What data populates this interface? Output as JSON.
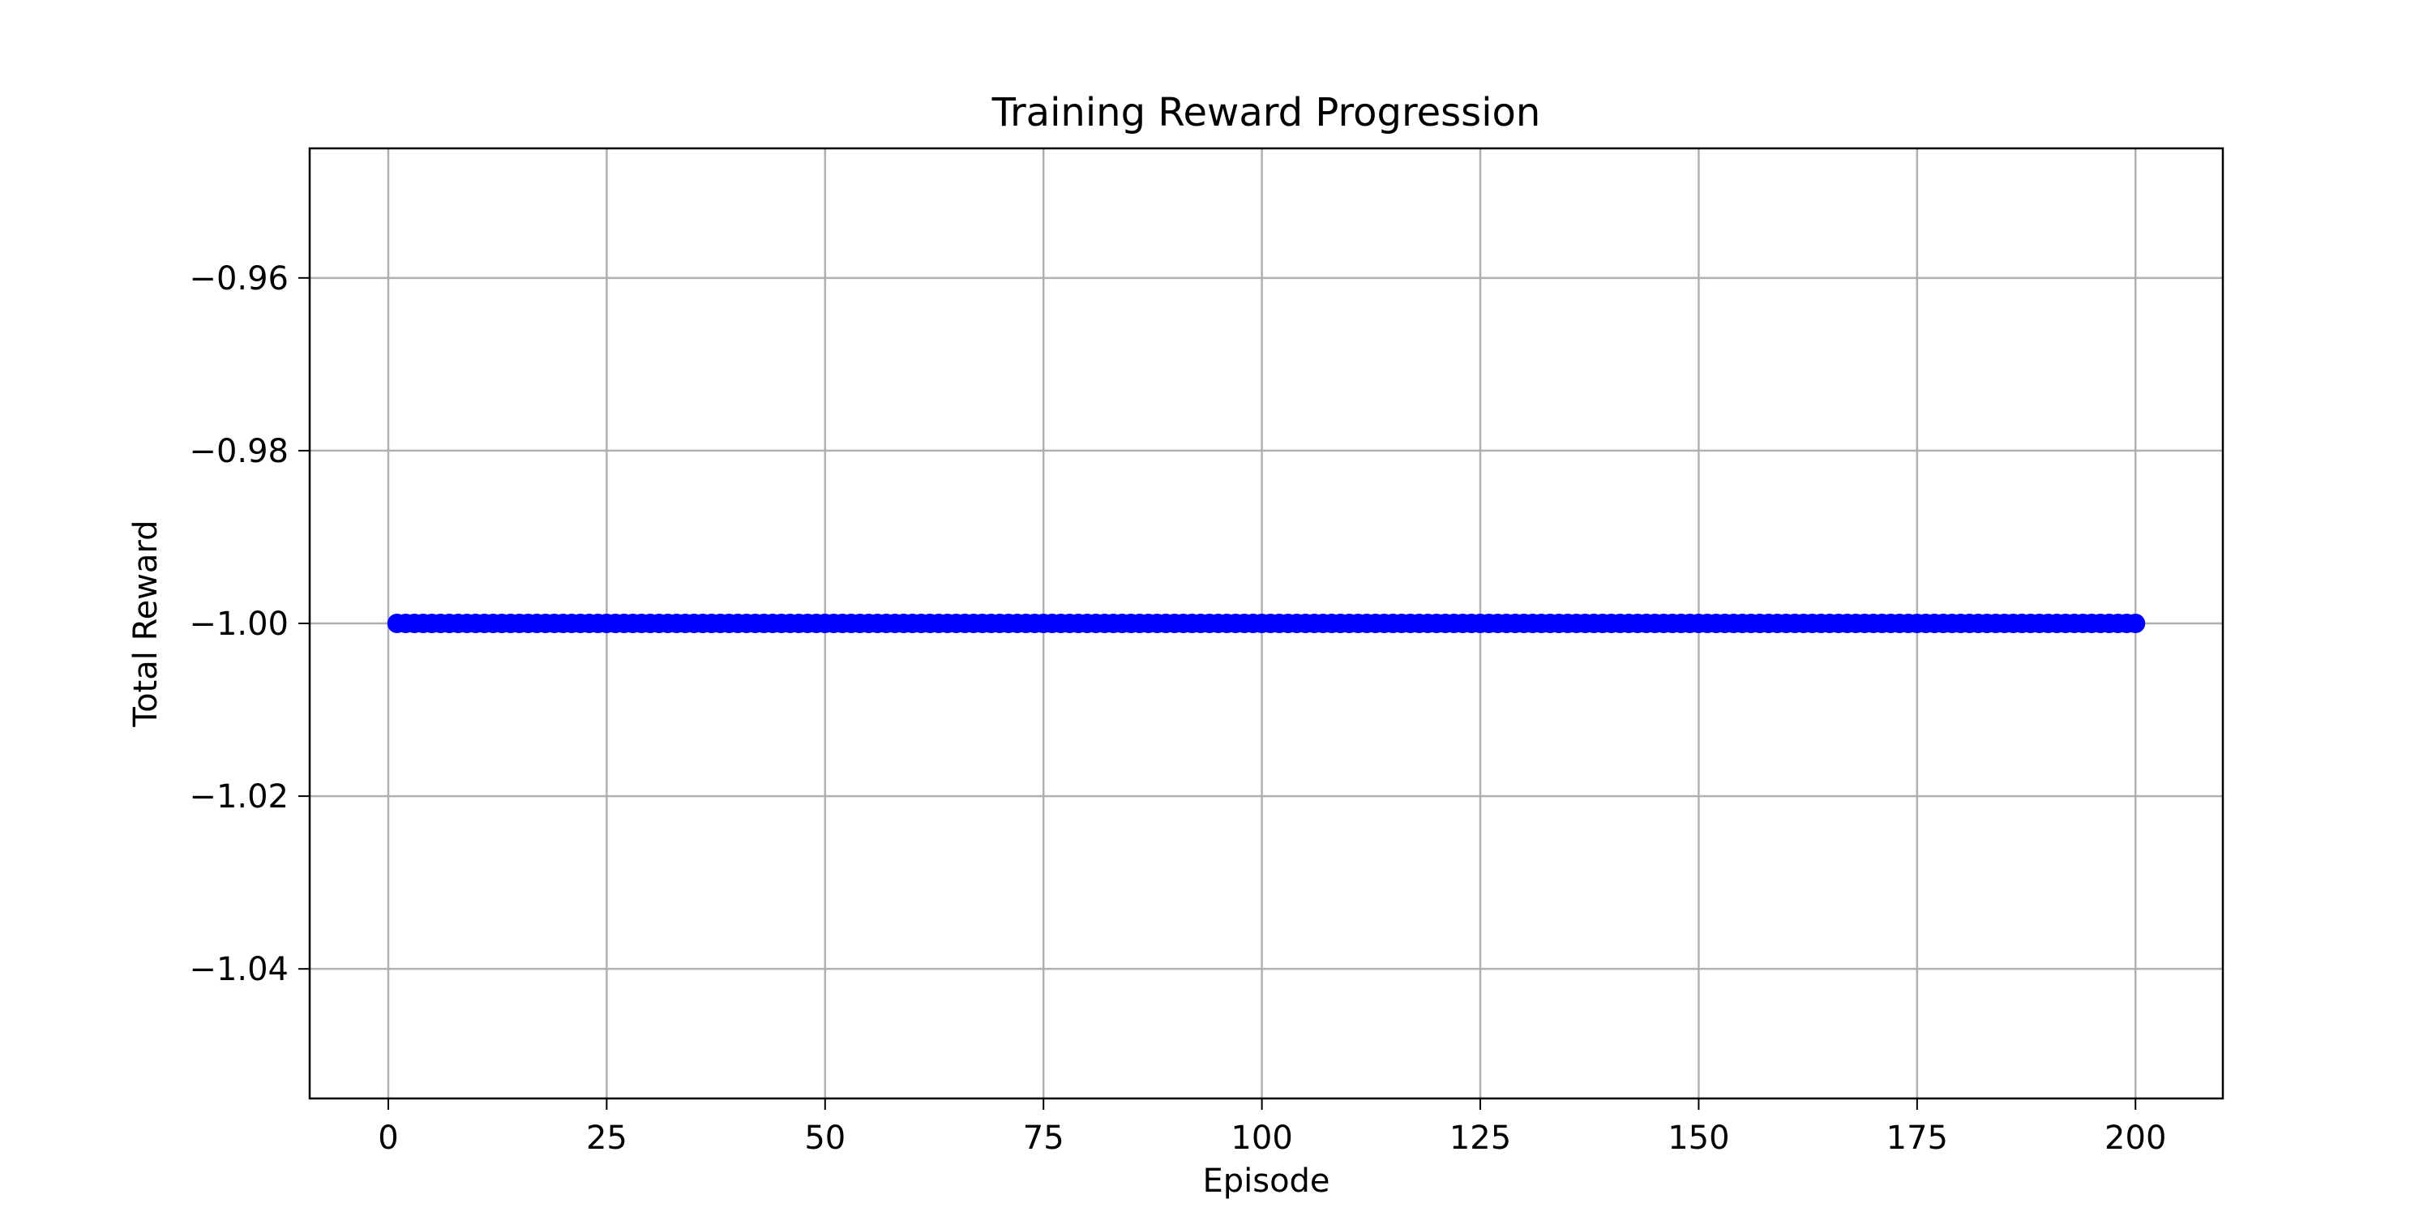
{
  "chart_data": {
    "type": "line",
    "title": "Training Reward Progression",
    "xlabel": "Episode",
    "ylabel": "Total Reward",
    "xlim": [
      -9,
      210
    ],
    "ylim": [
      -1.055,
      -0.945
    ],
    "x_ticks": [
      0,
      25,
      50,
      75,
      100,
      125,
      150,
      175,
      200
    ],
    "x_tick_labels": [
      "0",
      "25",
      "50",
      "75",
      "100",
      "125",
      "150",
      "175",
      "200"
    ],
    "y_ticks": [
      -1.04,
      -1.02,
      -1.0,
      -0.98,
      -0.96
    ],
    "y_tick_labels": [
      "−1.04",
      "−1.02",
      "−1.00",
      "−0.98",
      "−0.96"
    ],
    "grid": true,
    "marker": "circle",
    "series": [
      {
        "color": "#0000ff",
        "x_start": 1,
        "x_end": 200,
        "x_step": 1,
        "y_constant": -1.0
      }
    ]
  }
}
